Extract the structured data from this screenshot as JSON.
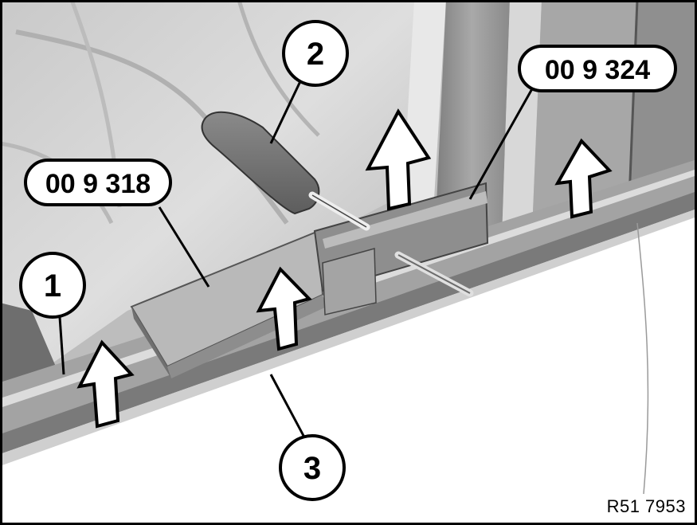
{
  "callouts": {
    "item_1": "1",
    "item_2": "2",
    "item_3": "3",
    "tool_a": "00 9 318",
    "tool_b": "00 9 324"
  },
  "figure_ref": "R51 7953",
  "colors": {
    "background": "#ffffff",
    "seat": "#cfcfcf",
    "trim": "#9a9a9a",
    "ink": "#000000"
  }
}
